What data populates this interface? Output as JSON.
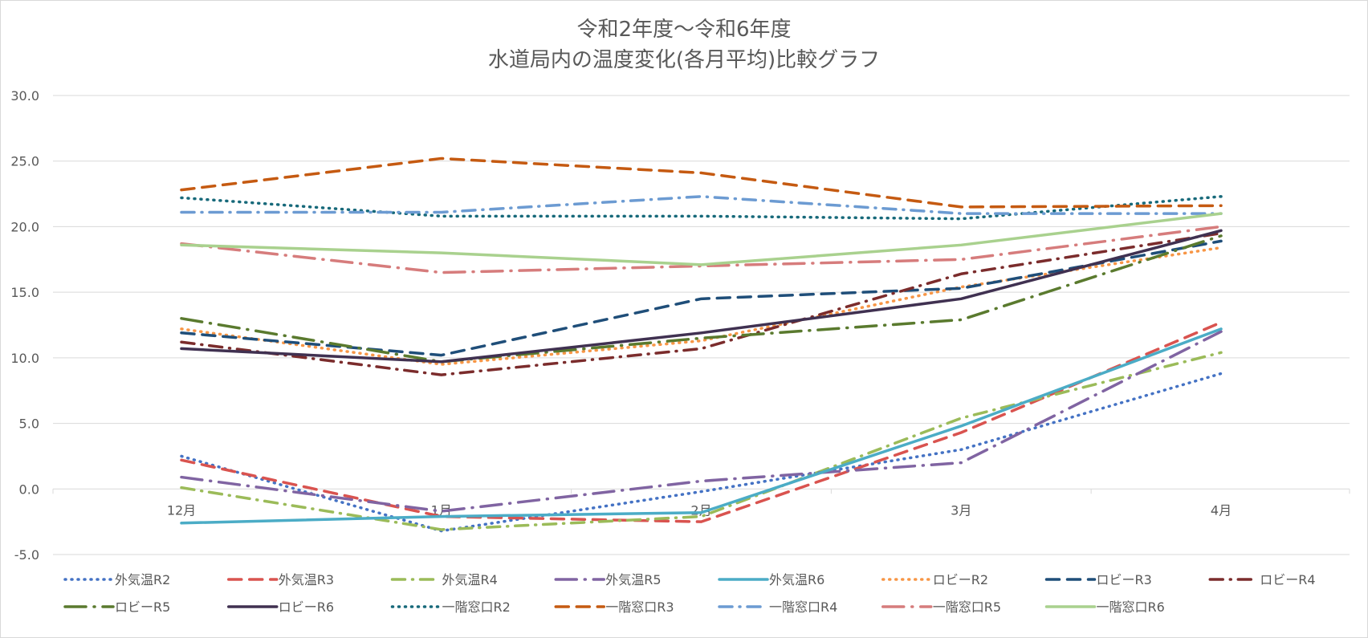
{
  "chart_data": {
    "type": "line",
    "title": [
      "令和2年度～令和6年度",
      "水道局内の温度変化(各月平均)比較グラフ"
    ],
    "xlabel": "",
    "ylabel": "",
    "categories": [
      "12月",
      "1月",
      "2月",
      "3月",
      "4月"
    ],
    "ylim": [
      -5.0,
      30.0
    ],
    "yticks": [
      "30.0",
      "25.0",
      "20.0",
      "15.0",
      "10.0",
      "5.0",
      "0.0",
      "-5.0"
    ],
    "grid": "horizontal",
    "legend": "bottom",
    "series": [
      {
        "name": "外気温R2",
        "color": "#4472c4",
        "dash": "dot",
        "values": [
          2.5,
          -3.2,
          -0.2,
          3.0,
          8.8
        ]
      },
      {
        "name": "外気温R3",
        "color": "#d9534f",
        "dash": "dash",
        "values": [
          2.2,
          -2.1,
          -2.5,
          4.3,
          12.7
        ]
      },
      {
        "name": "外気温R4",
        "color": "#9bbb59",
        "dash": "dashdot",
        "values": [
          0.1,
          -3.1,
          -2.1,
          5.4,
          10.4
        ]
      },
      {
        "name": "外気温R5",
        "color": "#8064a2",
        "dash": "longdashdot",
        "values": [
          0.9,
          -1.7,
          0.6,
          2.0,
          12.0
        ]
      },
      {
        "name": "外気温R6",
        "color": "#4bacc6",
        "dash": "solid",
        "values": [
          -2.6,
          -2.1,
          -1.8,
          4.8,
          12.2
        ]
      },
      {
        "name": "ロビーR2",
        "color": "#f79646",
        "dash": "dot",
        "values": [
          12.2,
          9.5,
          11.3,
          15.4,
          18.4
        ]
      },
      {
        "name": "ロビーR3",
        "color": "#1f4e79",
        "dash": "dash",
        "values": [
          11.9,
          10.2,
          14.5,
          15.3,
          18.9
        ]
      },
      {
        "name": "ロビーR4",
        "color": "#7b2c2c",
        "dash": "dashdot",
        "values": [
          11.2,
          8.7,
          10.7,
          16.4,
          19.5
        ]
      },
      {
        "name": "ロビーR5",
        "color": "#5a7a2e",
        "dash": "longdashdot",
        "values": [
          13.0,
          9.7,
          11.5,
          12.9,
          19.3
        ]
      },
      {
        "name": "ロビーR6",
        "color": "#403151",
        "dash": "solid",
        "values": [
          10.7,
          9.7,
          11.9,
          14.5,
          19.7
        ]
      },
      {
        "name": "一階窓口R2",
        "color": "#17697a",
        "dash": "dot",
        "values": [
          22.2,
          20.8,
          20.8,
          20.6,
          22.3
        ]
      },
      {
        "name": "一階窓口R3",
        "color": "#c55a11",
        "dash": "dash",
        "values": [
          22.8,
          25.2,
          24.1,
          21.5,
          21.6
        ]
      },
      {
        "name": "一階窓口R4",
        "color": "#6c9bd2",
        "dash": "dashdot",
        "values": [
          21.1,
          21.1,
          22.3,
          21.0,
          21.0
        ]
      },
      {
        "name": "一階窓口R5",
        "color": "#d67c7c",
        "dash": "longdashdot",
        "values": [
          18.7,
          16.5,
          17.0,
          17.5,
          20.0
        ]
      },
      {
        "name": "一階窓口R6",
        "color": "#a9d18e",
        "dash": "solid",
        "values": [
          18.6,
          18.0,
          17.1,
          18.6,
          21.0
        ]
      }
    ]
  }
}
